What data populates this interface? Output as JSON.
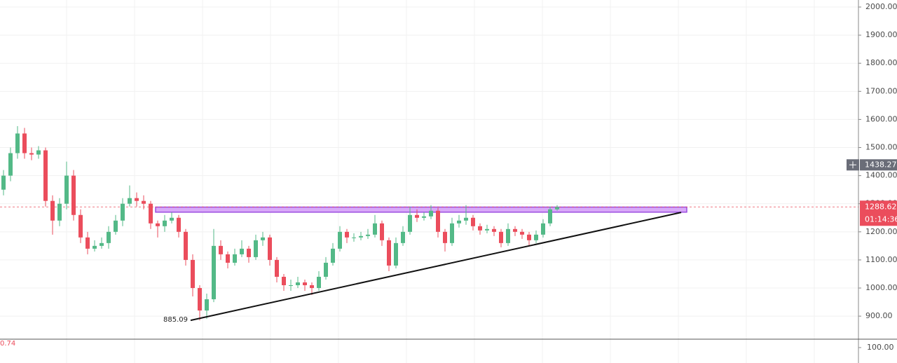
{
  "chart_data": {
    "type": "candlestick",
    "open": [
      1350,
      1400,
      1480,
      1550,
      1480,
      1475,
      1490,
      1310,
      1240,
      1300,
      1400,
      1260,
      1180,
      1140,
      1150,
      1160,
      1200,
      1240,
      1300,
      1320,
      1310,
      1300,
      1230,
      1220,
      1240,
      1250,
      1200,
      1100,
      1000,
      920,
      960,
      1150,
      1120,
      1090,
      1120,
      1140,
      1110,
      1170,
      1180,
      1100,
      1040,
      1010,
      1010,
      1020,
      1010,
      1000,
      1040,
      1090,
      1140,
      1200,
      1180,
      1180,
      1185,
      1190,
      1230,
      1170,
      1080,
      1160,
      1200,
      1260,
      1250,
      1255,
      1275,
      1200,
      1160,
      1230,
      1240,
      1250,
      1220,
      1205,
      1210,
      1200,
      1160,
      1210,
      1200,
      1190,
      1170,
      1190,
      1230,
      1280
    ],
    "high": [
      1420,
      1500,
      1576,
      1570,
      1500,
      1505,
      1500,
      1330,
      1320,
      1450,
      1420,
      1280,
      1200,
      1170,
      1180,
      1220,
      1260,
      1320,
      1365,
      1340,
      1330,
      1310,
      1240,
      1260,
      1270,
      1260,
      1210,
      1120,
      1010,
      980,
      1210,
      1170,
      1130,
      1140,
      1170,
      1150,
      1190,
      1200,
      1190,
      1110,
      1050,
      1030,
      1040,
      1030,
      1020,
      1060,
      1110,
      1160,
      1220,
      1210,
      1195,
      1200,
      1210,
      1260,
      1240,
      1180,
      1180,
      1220,
      1290,
      1280,
      1270,
      1295,
      1285,
      1210,
      1250,
      1260,
      1295,
      1260,
      1230,
      1225,
      1220,
      1210,
      1230,
      1220,
      1210,
      1200,
      1205,
      1245,
      1290,
      1295
    ],
    "low": [
      1330,
      1380,
      1460,
      1460,
      1455,
      1460,
      1290,
      1190,
      1220,
      1280,
      1240,
      1160,
      1120,
      1130,
      1140,
      1140,
      1190,
      1220,
      1290,
      1290,
      1280,
      1210,
      1180,
      1200,
      1230,
      1180,
      1080,
      970,
      885,
      890,
      950,
      1100,
      1070,
      1080,
      1110,
      1090,
      1100,
      1150,
      1080,
      1020,
      990,
      990,
      1000,
      990,
      975,
      990,
      1030,
      1080,
      1130,
      1160,
      1165,
      1170,
      1175,
      1180,
      1150,
      1060,
      1070,
      1150,
      1190,
      1235,
      1240,
      1245,
      1180,
      1130,
      1150,
      1215,
      1225,
      1205,
      1190,
      1195,
      1185,
      1145,
      1150,
      1185,
      1175,
      1150,
      1160,
      1180,
      1220,
      1275
    ],
    "close": [
      1400,
      1480,
      1550,
      1480,
      1475,
      1490,
      1310,
      1240,
      1300,
      1400,
      1260,
      1180,
      1140,
      1150,
      1160,
      1200,
      1240,
      1300,
      1320,
      1310,
      1300,
      1230,
      1220,
      1240,
      1250,
      1200,
      1100,
      1000,
      920,
      960,
      1150,
      1120,
      1090,
      1120,
      1140,
      1110,
      1170,
      1180,
      1100,
      1040,
      1010,
      1010,
      1020,
      1010,
      1000,
      1040,
      1090,
      1140,
      1200,
      1180,
      1180,
      1185,
      1190,
      1230,
      1170,
      1080,
      1160,
      1200,
      1260,
      1250,
      1255,
      1275,
      1200,
      1160,
      1230,
      1240,
      1250,
      1220,
      1205,
      1210,
      1200,
      1160,
      1210,
      1200,
      1190,
      1170,
      1190,
      1230,
      1280,
      1288
    ],
    "up_color": "#53b987",
    "down_color": "#eb4d5c",
    "ylim": [
      818,
      2025
    ],
    "yticks": [
      {
        "value": 900,
        "label": "900.00"
      },
      {
        "value": 1000,
        "label": "1000.00"
      },
      {
        "value": 1100,
        "label": "1100.00"
      },
      {
        "value": 1200,
        "label": "1200.00"
      },
      {
        "value": 1300,
        "label": "1300.00"
      },
      {
        "value": 1400,
        "label": "1400.00"
      },
      {
        "value": 1500,
        "label": "1500.00"
      },
      {
        "value": 1600,
        "label": "1600.00"
      },
      {
        "value": 1700,
        "label": "1700.00"
      },
      {
        "value": 1800,
        "label": "1800.00"
      },
      {
        "value": 1900,
        "label": "1900.00"
      },
      {
        "value": 2000,
        "label": "2000.00"
      }
    ],
    "grid": true,
    "resistance_band": [
      1270,
      1288
    ],
    "trendline": [
      {
        "value": 885.09,
        "label": "885.09"
      },
      1269
    ],
    "last_price": {
      "value": 1288.62,
      "label": "1288.62"
    },
    "crosshair_price": {
      "value": 1438.27,
      "label": "1438.27"
    },
    "countdown": "01:14:36",
    "lower_pane": {
      "left_label": "0.74",
      "tick_label": "100.00"
    }
  }
}
